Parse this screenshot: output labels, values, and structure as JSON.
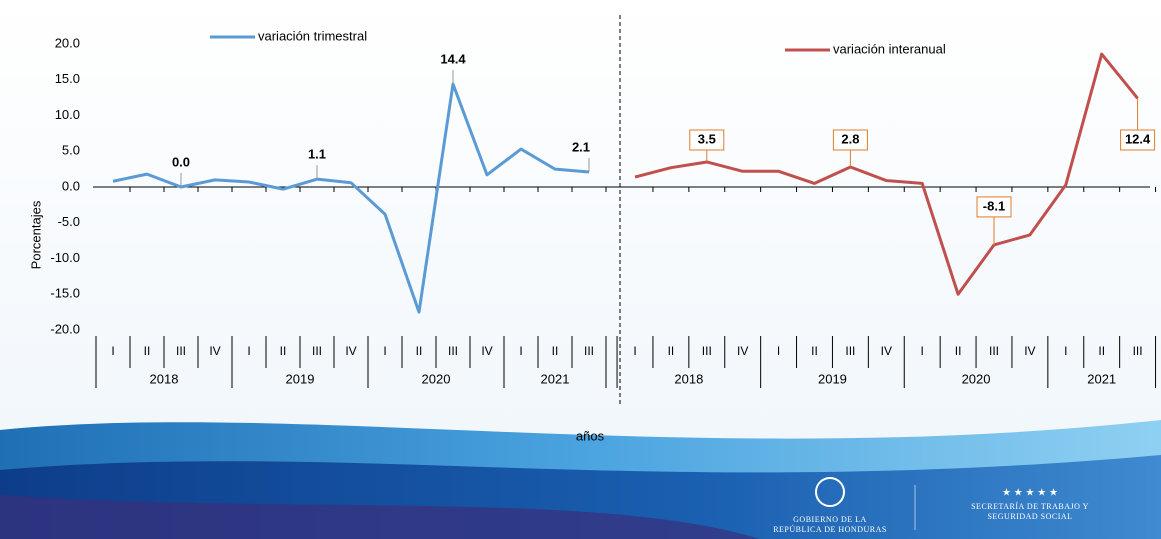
{
  "chart_data": [
    {
      "type": "line",
      "ylabel": "Porcentajes",
      "xlabel": "años",
      "ylim": [
        -20,
        20
      ],
      "yticks": [
        {
          "value": 20,
          "label": "20.0"
        },
        {
          "value": 15,
          "label": "15.0"
        },
        {
          "value": 10,
          "label": "10.0"
        },
        {
          "value": 5,
          "label": "5.0"
        },
        {
          "value": 0,
          "label": "0.0"
        },
        {
          "value": -5,
          "label": "-5.0"
        },
        {
          "value": -10,
          "label": "-10.0"
        },
        {
          "value": -15,
          "label": "-15.0"
        },
        {
          "value": -20,
          "label": "-20.0"
        }
      ],
      "categories": [
        "I",
        "II",
        "III",
        "IV",
        "I",
        "II",
        "III",
        "IV",
        "I",
        "II",
        "III",
        "IV",
        "I",
        "II",
        "III"
      ],
      "years": [
        "2018",
        "2019",
        "2020",
        "2021"
      ],
      "legend": "top",
      "series": [
        {
          "name": "variación trimestral",
          "color": "#5b9bd5",
          "values": [
            0.8,
            1.8,
            0.0,
            1.0,
            0.7,
            -0.3,
            1.1,
            0.6,
            -3.8,
            -17.5,
            14.4,
            1.7,
            5.3,
            2.5,
            2.1
          ],
          "value_labels": [
            null,
            null,
            "0.0",
            null,
            null,
            null,
            "1.1",
            null,
            null,
            null,
            "14.4",
            null,
            null,
            null,
            "2.1"
          ]
        }
      ]
    },
    {
      "type": "line",
      "ylim": [
        -20,
        20
      ],
      "categories": [
        "I",
        "II",
        "III",
        "IV",
        "I",
        "II",
        "III",
        "IV",
        "I",
        "II",
        "III",
        "IV",
        "I",
        "II",
        "III"
      ],
      "years": [
        "2018",
        "2019",
        "2020",
        "2021"
      ],
      "legend": "top",
      "series": [
        {
          "name": "variación interanual",
          "color": "#c0504d",
          "values": [
            1.4,
            2.7,
            3.5,
            2.2,
            2.2,
            0.5,
            2.8,
            0.9,
            0.5,
            -15.0,
            -8.1,
            -6.7,
            0.3,
            18.6,
            12.4
          ],
          "value_labels": [
            null,
            null,
            "3.5",
            null,
            null,
            null,
            "2.8",
            null,
            null,
            null,
            "-8.1",
            null,
            null,
            null,
            "12.4"
          ]
        }
      ]
    }
  ],
  "footer": {
    "gov_line1": "Gobierno de la",
    "gov_line2": "República de Honduras",
    "ministry_line1": "Secretaría de Trabajo y",
    "ministry_line2": "Seguridad Social"
  }
}
